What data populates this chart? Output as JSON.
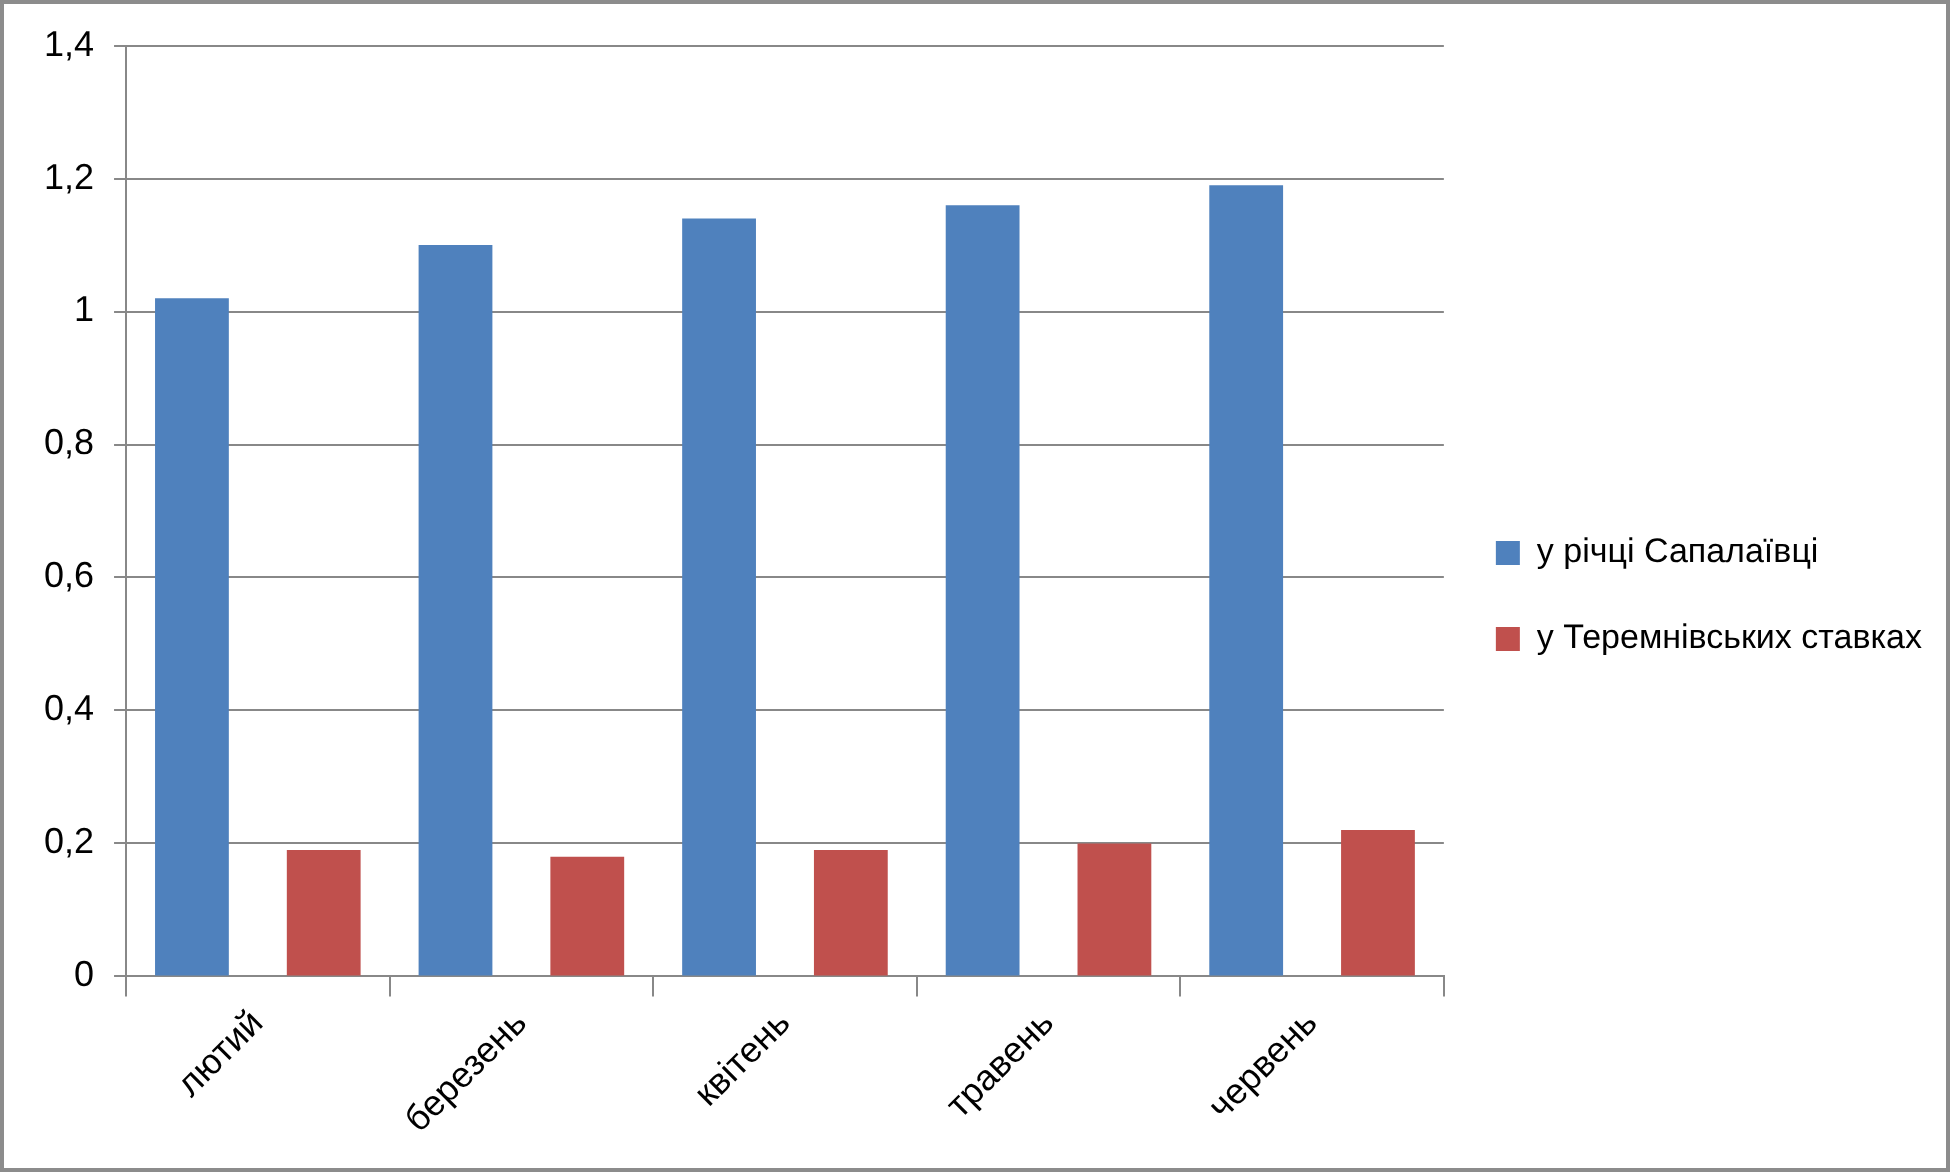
{
  "chart_data": {
    "type": "bar",
    "categories": [
      "лютий",
      "березень",
      "квітень",
      "травень",
      "червень"
    ],
    "series": [
      {
        "name": "у річці Сапалаївці",
        "color": "#4f81bd",
        "values": [
          1.02,
          1.1,
          1.14,
          1.16,
          1.19
        ]
      },
      {
        "name": "у Теремнівських ставках",
        "color": "#c0504d",
        "values": [
          0.19,
          0.18,
          0.19,
          0.2,
          0.22
        ]
      }
    ],
    "ylim": [
      0,
      1.4
    ],
    "yticks": [
      0,
      {
        "value": 0.2,
        "label": "0,2"
      },
      {
        "value": 0.4,
        "label": "0,4"
      },
      {
        "value": 0.6,
        "label": "0,6"
      },
      {
        "value": 0.8,
        "label": "0,8"
      },
      1,
      {
        "value": 1.2,
        "label": "1,2"
      },
      {
        "value": 1.4,
        "label": "1,4"
      }
    ],
    "grid": "y",
    "legend": "right"
  }
}
